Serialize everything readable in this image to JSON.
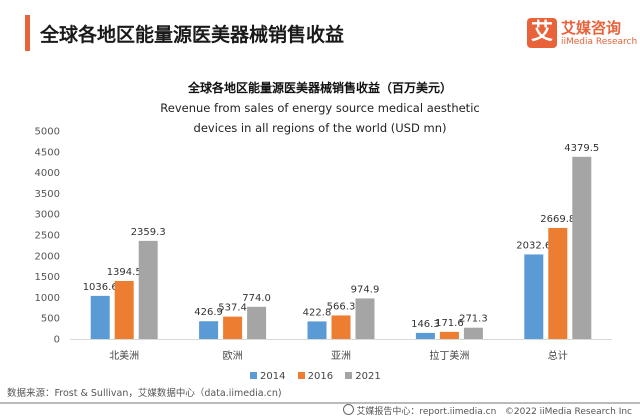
{
  "header": {
    "title": "全球各地区能量源医美器械销售收益",
    "accent_color": "#e8623a"
  },
  "logo": {
    "mark": "艾",
    "name_cn": "艾媒咨询",
    "name_en": "iiMedia Research"
  },
  "chart_data": {
    "type": "bar",
    "title": "全球各地区能量源医美器械销售收益（百万美元）",
    "subtitle_line1": "Revenue from sales of energy source medical aesthetic",
    "subtitle_line2": "devices in all regions of the world (USD mn)",
    "xlabel": "",
    "ylabel": "",
    "ylim": [
      0,
      5000
    ],
    "yticks": [
      "0",
      "500",
      "1000",
      "1500",
      "2000",
      "2500",
      "3000",
      "3500",
      "4000",
      "4500",
      "5000"
    ],
    "grid": false,
    "legend_position": "bottom",
    "categories": [
      "北美洲",
      "欧洲",
      "亚洲",
      "拉丁美洲",
      "总计"
    ],
    "series": [
      {
        "name": "2014",
        "color": "#5b9bd5",
        "values": [
          1036.6,
          426.9,
          422.8,
          146.3,
          2032.6
        ],
        "labels": [
          "1036.6",
          "426.9",
          "422.8",
          "146.3",
          "2032.6"
        ]
      },
      {
        "name": "2016",
        "color": "#ed7d31",
        "values": [
          1394.5,
          537.4,
          566.3,
          171.6,
          2669.8
        ],
        "labels": [
          "1394.5",
          "537.4",
          "566.3",
          "171.6",
          "2669.8"
        ]
      },
      {
        "name": "2021",
        "color": "#a5a5a5",
        "values": [
          2359.3,
          774.0,
          974.9,
          271.3,
          4379.5
        ],
        "labels": [
          "2359.3",
          "774.0",
          "974.9",
          "271.3",
          "4379.5"
        ]
      }
    ]
  },
  "footer": {
    "source": "数据来源：Frost & Sullivan，艾媒数据中心（data.iimedia.cn)",
    "report_center": "艾媒报告中心：report.iimedia.cn",
    "copyright": "©2022  iiMedia Research  Inc"
  }
}
